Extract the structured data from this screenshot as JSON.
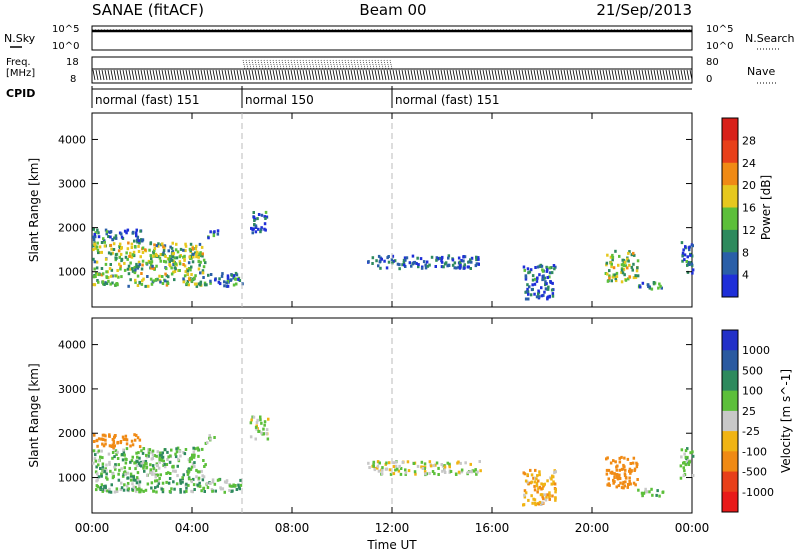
{
  "header": {
    "station": "SANAE (fitACF)",
    "beam": "Beam 00",
    "date": "21/Sep/2013"
  },
  "noise_panel": {
    "left_label": "N.Sky",
    "right_label": "N.Search",
    "left_ticks": [
      "10^5",
      "10^0"
    ],
    "right_ticks": [
      "10^5",
      "10^0"
    ]
  },
  "freq_panel": {
    "left_label_line1": "Freq.",
    "left_label_line2": "[MHz]",
    "left_ticks": [
      "18",
      "8"
    ],
    "right_label": "Nave",
    "right_ticks": [
      "80",
      "0"
    ],
    "cpid_label": "CPID"
  },
  "cpid_segments": [
    {
      "start_h": 0,
      "end_h": 6,
      "label": "normal (fast) 151"
    },
    {
      "start_h": 6,
      "end_h": 12,
      "label": "normal 150"
    },
    {
      "start_h": 12,
      "end_h": 24,
      "label": "normal (fast) 151"
    }
  ],
  "time_axis": {
    "label": "Time UT",
    "range_h": [
      0,
      24
    ],
    "tick_labels": [
      "00:00",
      "04:00",
      "08:00",
      "12:00",
      "16:00",
      "20:00",
      "00:00"
    ],
    "tick_hours": [
      0,
      4,
      8,
      12,
      16,
      20,
      24
    ],
    "dashed_markers_h": [
      6,
      12
    ]
  },
  "panels": [
    {
      "name": "power",
      "ylabel": "Slant Range [km]",
      "yticks": [
        "1000",
        "2000",
        "3000",
        "4000"
      ],
      "ytick_values": [
        1000,
        2000,
        3000,
        4000
      ],
      "ylim": [
        200,
        4600
      ],
      "colorbar_label": "Power [dB]",
      "colorbar_ticks": [
        "4",
        "8",
        "12",
        "16",
        "20",
        "24",
        "28"
      ],
      "colorbar_colors": [
        "#1f2fd8",
        "#2a5fa8",
        "#2e8a5e",
        "#5cbf3a",
        "#e6c81e",
        "#f08a14",
        "#e8401a",
        "#d8201a"
      ]
    },
    {
      "name": "velocity",
      "ylabel": "Slant Range [km]",
      "yticks": [
        "1000",
        "2000",
        "3000",
        "4000"
      ],
      "ytick_values": [
        1000,
        2000,
        3000,
        4000
      ],
      "ylim": [
        200,
        4600
      ],
      "colorbar_label": "Velocity [m s^-1]",
      "colorbar_ticks": [
        "1000",
        "500",
        "100",
        "25",
        "-25",
        "-100",
        "-500",
        "-1000"
      ],
      "colorbar_colors": [
        "#2230c8",
        "#2a5aa0",
        "#2e8a5e",
        "#5cbf3a",
        "#c8c8c8",
        "#f0b414",
        "#f08a14",
        "#e8401a",
        "#e81a1a"
      ]
    }
  ],
  "chart_data": {
    "type": "heatmap",
    "title": "SANAE (fitACF) Beam 00 21/Sep/2013",
    "xlabel": "Time UT",
    "ylabel": "Slant Range [km]",
    "xlim_hours": [
      0,
      24
    ],
    "ylim_km": [
      200,
      4600
    ],
    "cpid": [
      {
        "start_h": 0,
        "end_h": 6,
        "label": "normal (fast) 151"
      },
      {
        "start_h": 6,
        "end_h": 12,
        "label": "normal 150"
      },
      {
        "start_h": 12,
        "end_h": 24,
        "label": "normal (fast) 151"
      }
    ],
    "freq_mhz_range": [
      8,
      18
    ],
    "nave_range": [
      0,
      80
    ],
    "scatter_regions": [
      {
        "h_start": 0.0,
        "h_end": 4.5,
        "km_low": 700,
        "km_high": 1700,
        "power_db": 14,
        "velocity": 60
      },
      {
        "h_start": 4.5,
        "h_end": 6.0,
        "km_low": 700,
        "km_high": 1000,
        "power_db": 8,
        "velocity": 60
      },
      {
        "h_start": 0.0,
        "h_end": 2.0,
        "km_low": 1700,
        "km_high": 2000,
        "power_db": 6,
        "velocity": -300
      },
      {
        "h_start": 4.5,
        "h_end": 5.0,
        "km_low": 1800,
        "km_high": 2000,
        "power_db": 6,
        "velocity": 60
      },
      {
        "h_start": 6.3,
        "h_end": 7.0,
        "km_low": 1900,
        "km_high": 2400,
        "power_db": 6,
        "velocity": 10
      },
      {
        "h_start": 11.0,
        "h_end": 15.5,
        "km_low": 1100,
        "km_high": 1400,
        "power_db": 5,
        "velocity": 0
      },
      {
        "h_start": 17.2,
        "h_end": 18.5,
        "km_low": 400,
        "km_high": 1200,
        "power_db": 6,
        "velocity": -80
      },
      {
        "h_start": 20.5,
        "h_end": 21.8,
        "km_low": 800,
        "km_high": 1500,
        "power_db": 14,
        "velocity": -300
      },
      {
        "h_start": 21.8,
        "h_end": 22.8,
        "km_low": 600,
        "km_high": 800,
        "power_db": 8,
        "velocity": 60
      },
      {
        "h_start": 23.5,
        "h_end": 24.0,
        "km_low": 1000,
        "km_high": 1700,
        "power_db": 6,
        "velocity": 60
      }
    ]
  }
}
